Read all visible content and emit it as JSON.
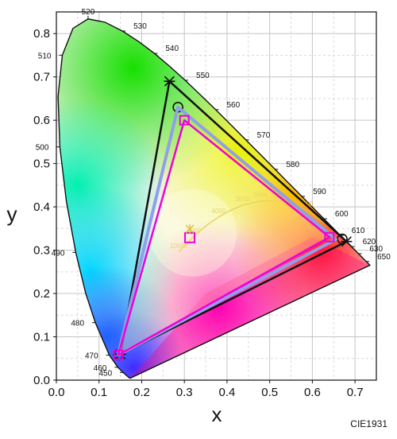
{
  "chart_data": {
    "type": "scatter",
    "xlabel": "x",
    "ylabel": "y",
    "xlim": [
      0.0,
      0.75
    ],
    "ylim": [
      0.0,
      0.85
    ],
    "x_ticks": [
      "0.0",
      "0.1",
      "0.2",
      "0.3",
      "0.4",
      "0.5",
      "0.6",
      "0.7"
    ],
    "y_ticks": [
      "0.0",
      "0.1",
      "0.2",
      "0.3",
      "0.4",
      "0.5",
      "0.6",
      "0.7",
      "0.8"
    ],
    "grid": true,
    "credit": "CIE1931",
    "spectral_locus": [
      [
        0.1741,
        0.005
      ],
      [
        0.1738,
        0.0049
      ],
      [
        0.1733,
        0.0048
      ],
      [
        0.1726,
        0.0048
      ],
      [
        0.1714,
        0.0051
      ],
      [
        0.1689,
        0.0069
      ],
      [
        0.1644,
        0.0109
      ],
      [
        0.1566,
        0.0177
      ],
      [
        0.144,
        0.0297
      ],
      [
        0.1241,
        0.0578
      ],
      [
        0.0913,
        0.1327
      ],
      [
        0.0687,
        0.2007
      ],
      [
        0.0454,
        0.295
      ],
      [
        0.0235,
        0.4127
      ],
      [
        0.0082,
        0.5384
      ],
      [
        0.0039,
        0.6548
      ],
      [
        0.0139,
        0.7502
      ],
      [
        0.0389,
        0.812
      ],
      [
        0.0743,
        0.8338
      ],
      [
        0.1142,
        0.8262
      ],
      [
        0.1547,
        0.8059
      ],
      [
        0.1929,
        0.7816
      ],
      [
        0.2296,
        0.7543
      ],
      [
        0.2658,
        0.7243
      ],
      [
        0.3016,
        0.6923
      ],
      [
        0.3373,
        0.6589
      ],
      [
        0.3731,
        0.6245
      ],
      [
        0.4087,
        0.5896
      ],
      [
        0.4441,
        0.5547
      ],
      [
        0.4788,
        0.5202
      ],
      [
        0.5125,
        0.4866
      ],
      [
        0.5448,
        0.4544
      ],
      [
        0.5752,
        0.4242
      ],
      [
        0.6029,
        0.3965
      ],
      [
        0.627,
        0.3725
      ],
      [
        0.6482,
        0.3514
      ],
      [
        0.6658,
        0.334
      ],
      [
        0.6801,
        0.3197
      ],
      [
        0.6915,
        0.3083
      ],
      [
        0.7006,
        0.2993
      ],
      [
        0.7079,
        0.292
      ],
      [
        0.714,
        0.2859
      ],
      [
        0.719,
        0.2809
      ],
      [
        0.723,
        0.277
      ],
      [
        0.726,
        0.274
      ],
      [
        0.7283,
        0.2717
      ],
      [
        0.73,
        0.27
      ],
      [
        0.7311,
        0.2689
      ],
      [
        0.732,
        0.268
      ],
      [
        0.7327,
        0.2673
      ],
      [
        0.7334,
        0.2666
      ],
      [
        0.734,
        0.266
      ],
      [
        0.7344,
        0.2656
      ],
      [
        0.7346,
        0.2654
      ],
      [
        0.7347,
        0.2653
      ]
    ],
    "wavelength_labels": [
      {
        "nm": "450",
        "x": 0.1566,
        "y": 0.0177,
        "side": "left"
      },
      {
        "nm": "460",
        "x": 0.144,
        "y": 0.0297,
        "side": "left"
      },
      {
        "nm": "470",
        "x": 0.1241,
        "y": 0.0578,
        "side": "left"
      },
      {
        "nm": "480",
        "x": 0.0913,
        "y": 0.1327,
        "side": "left"
      },
      {
        "nm": "490",
        "x": 0.0454,
        "y": 0.295,
        "side": "left"
      },
      {
        "nm": "500",
        "x": 0.0082,
        "y": 0.5384,
        "side": "left"
      },
      {
        "nm": "510",
        "x": 0.0139,
        "y": 0.7502,
        "side": "left"
      },
      {
        "nm": "520",
        "x": 0.0743,
        "y": 0.8338,
        "side": "top"
      },
      {
        "nm": "530",
        "x": 0.1547,
        "y": 0.8059,
        "side": "right"
      },
      {
        "nm": "540",
        "x": 0.2296,
        "y": 0.7543,
        "side": "right"
      },
      {
        "nm": "550",
        "x": 0.3016,
        "y": 0.6923,
        "side": "right"
      },
      {
        "nm": "560",
        "x": 0.3731,
        "y": 0.6245,
        "side": "right"
      },
      {
        "nm": "570",
        "x": 0.4441,
        "y": 0.5547,
        "side": "right"
      },
      {
        "nm": "580",
        "x": 0.5125,
        "y": 0.4866,
        "side": "right"
      },
      {
        "nm": "590",
        "x": 0.5752,
        "y": 0.4242,
        "side": "right"
      },
      {
        "nm": "600",
        "x": 0.627,
        "y": 0.3725,
        "side": "right"
      },
      {
        "nm": "610",
        "x": 0.6658,
        "y": 0.334,
        "side": "right"
      },
      {
        "nm": "620",
        "x": 0.6915,
        "y": 0.3083,
        "side": "right"
      },
      {
        "nm": "630",
        "x": 0.7079,
        "y": 0.292,
        "side": "right"
      },
      {
        "nm": "650",
        "x": 0.726,
        "y": 0.274,
        "side": "right"
      }
    ],
    "planckian_locus": [
      [
        0.6499,
        0.3474
      ],
      [
        0.5857,
        0.3931
      ],
      [
        0.5267,
        0.4133
      ],
      [
        0.477,
        0.4137
      ],
      [
        0.4369,
        0.4041
      ],
      [
        0.4053,
        0.3907
      ],
      [
        0.3805,
        0.3768
      ],
      [
        0.3608,
        0.3636
      ],
      [
        0.3451,
        0.3516
      ],
      [
        0.3325,
        0.3411
      ],
      [
        0.3221,
        0.3318
      ],
      [
        0.3135,
        0.3237
      ],
      [
        0.3064,
        0.3166
      ],
      [
        0.3003,
        0.3103
      ],
      [
        0.2952,
        0.3048
      ],
      [
        0.2908,
        0.2999
      ],
      [
        0.2869,
        0.2956
      ]
    ],
    "cct_labels": [
      {
        "text": "1500",
        "x": 0.5857,
        "y": 0.3931
      },
      {
        "text": "2000",
        "x": 0.5267,
        "y": 0.4133
      },
      {
        "text": "2500",
        "x": 0.477,
        "y": 0.4137
      },
      {
        "text": "3000",
        "x": 0.4369,
        "y": 0.4041
      },
      {
        "text": "4000",
        "x": 0.3805,
        "y": 0.3768
      },
      {
        "text": "6000",
        "x": 0.3221,
        "y": 0.3318
      },
      {
        "text": "10000",
        "x": 0.2869,
        "y": 0.2956
      }
    ],
    "series": [
      {
        "color": "#111111",
        "marker": "x",
        "width": 2.5,
        "points": [
          [
            0.265,
            0.69
          ],
          [
            0.68,
            0.32
          ],
          [
            0.15,
            0.06
          ]
        ]
      },
      {
        "color": "#111111",
        "marker": "o",
        "width": 0,
        "points": [
          [
            0.285,
            0.63
          ],
          [
            0.67,
            0.326
          ],
          [
            0.145,
            0.058
          ]
        ]
      },
      {
        "color": "#8fa0e8",
        "marker": "none",
        "width": 4,
        "points": [
          [
            0.285,
            0.63
          ],
          [
            0.655,
            0.325
          ],
          [
            0.145,
            0.058
          ]
        ]
      },
      {
        "color": "#ee00d8",
        "marker": "s",
        "width": 2.5,
        "points": [
          [
            0.3,
            0.6
          ],
          [
            0.64,
            0.33
          ],
          [
            0.145,
            0.058
          ]
        ]
      }
    ],
    "white_points": [
      {
        "color": "#ee00d8",
        "marker": "s",
        "x": 0.3127,
        "y": 0.329
      },
      {
        "color": "#d8c23a",
        "marker": "star",
        "x": 0.3127,
        "y": 0.349
      }
    ]
  }
}
